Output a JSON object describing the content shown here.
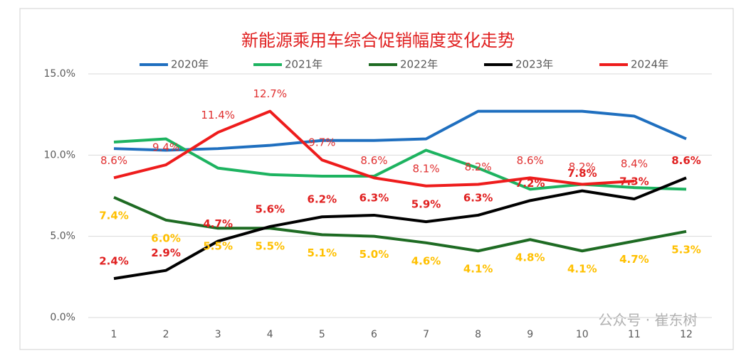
{
  "chart_data": {
    "type": "line",
    "title": "新能源乘用车综合促销幅度变化走势",
    "watermark": "公众号 · 崔东树",
    "categories": [
      "1",
      "2",
      "3",
      "4",
      "5",
      "6",
      "7",
      "8",
      "9",
      "10",
      "11",
      "12"
    ],
    "ylim": [
      0,
      15
    ],
    "yticks": [
      {
        "value": 0,
        "label": "0.0%"
      },
      {
        "value": 5,
        "label": "5.0%"
      },
      {
        "value": 10,
        "label": "10.0%"
      },
      {
        "value": 15,
        "label": "15.0%"
      }
    ],
    "grid": true,
    "legend": "top",
    "series": [
      {
        "name": "2020年",
        "color": "#1f6fbf",
        "values": [
          10.4,
          10.3,
          10.4,
          10.6,
          10.9,
          10.9,
          11.0,
          12.7,
          12.7,
          12.7,
          12.4,
          11.0
        ]
      },
      {
        "name": "2021年",
        "color": "#1db360",
        "values": [
          10.8,
          11.0,
          9.2,
          8.8,
          8.7,
          8.7,
          10.3,
          9.2,
          7.9,
          8.2,
          8.0,
          7.9
        ]
      },
      {
        "name": "2022年",
        "color": "#1e6b23",
        "values": [
          7.4,
          6.0,
          5.5,
          5.5,
          5.1,
          5.0,
          4.6,
          4.1,
          4.8,
          4.1,
          4.7,
          5.3
        ],
        "value_labels": [
          "7.4%",
          "6.0%",
          "5.5%",
          "5.5%",
          "5.1%",
          "5.0%",
          "4.6%",
          "4.1%",
          "4.8%",
          "4.1%",
          "4.7%",
          "5.3%"
        ]
      },
      {
        "name": "2023年",
        "color": "#000000",
        "values": [
          2.4,
          2.9,
          4.7,
          5.6,
          6.2,
          6.3,
          5.9,
          6.3,
          7.2,
          7.8,
          7.3,
          8.6
        ],
        "value_labels": [
          "2.4%",
          "2.9%",
          "4.7%",
          "5.6%",
          "6.2%",
          "6.3%",
          "5.9%",
          "6.3%",
          "7.2%",
          "7.8%",
          "7.3%",
          "8.6%"
        ]
      },
      {
        "name": "2024年",
        "color": "#ee1c1c",
        "values": [
          8.6,
          9.4,
          11.4,
          12.7,
          9.7,
          8.6,
          8.1,
          8.2,
          8.6,
          8.2,
          8.4,
          null
        ],
        "value_labels": [
          "8.6%",
          "9.4%",
          "11.4%",
          "12.7%",
          "9.7%",
          "8.6%",
          "8.1%",
          "8.2%",
          "8.6%",
          "8.2%",
          "8.4%",
          null
        ]
      }
    ]
  }
}
